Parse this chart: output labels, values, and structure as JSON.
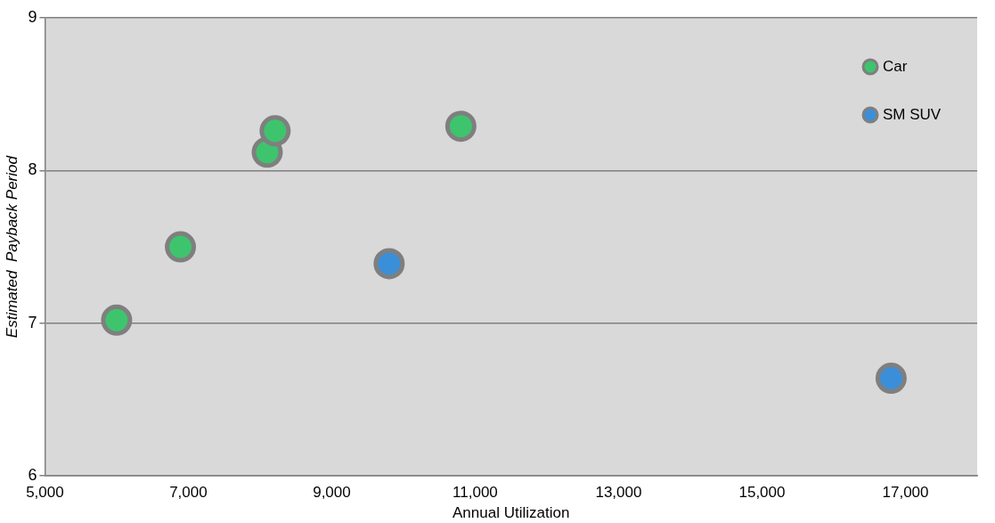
{
  "chart_data": {
    "type": "scatter",
    "xlabel": "Annual Utilization",
    "ylabel": "Estimated  Payback Period",
    "xlim": [
      5000,
      18000
    ],
    "xticks": [
      {
        "value": 5000,
        "label": "5,000"
      },
      {
        "value": 7000,
        "label": "7,000"
      },
      {
        "value": 9000,
        "label": "9,000"
      },
      {
        "value": 11000,
        "label": "11,000"
      },
      {
        "value": 13000,
        "label": "13,000"
      },
      {
        "value": 15000,
        "label": "15,000"
      },
      {
        "value": 17000,
        "label": "17,000"
      }
    ],
    "ylim": [
      6,
      9
    ],
    "yticks": [
      6,
      7,
      8,
      9
    ],
    "grid": "y",
    "legend": "top right",
    "marker": "circle",
    "series": [
      {
        "name": "Car",
        "color": "#3ec46d",
        "x": [
          6000,
          6890,
          8100,
          8210,
          10800
        ],
        "values": [
          7.02,
          7.5,
          8.12,
          8.26,
          8.29
        ]
      },
      {
        "name": "SM SUV",
        "color": "#3b8fd9",
        "x": [
          9800,
          16800
        ],
        "values": [
          7.39,
          6.64
        ]
      }
    ]
  }
}
